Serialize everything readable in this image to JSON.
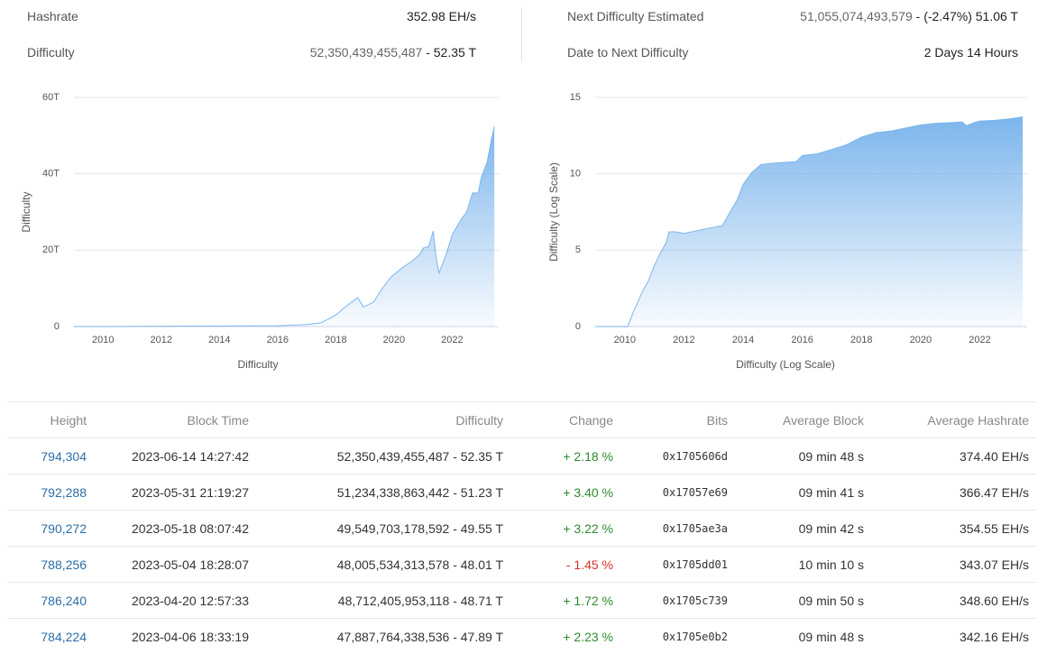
{
  "stats": [
    {
      "label": "Hashrate",
      "value": "352.98 EH/s"
    },
    {
      "label": "Difficulty",
      "value": "52,350,439,455,487",
      "suffix": "- 52.35 T"
    },
    {
      "label": "Next Difficulty Estimated",
      "value": "51,055,074,493,579",
      "suffix": "- (-2.47%) 51.06 T"
    },
    {
      "label": "Date to Next Difficulty",
      "value": "2 Days 14 Hours"
    }
  ],
  "chart_data": [
    {
      "type": "area",
      "y_label": "Difficulty",
      "x_label": "Difficulty",
      "color": "#7cb5ec",
      "grid": true,
      "xlim": [
        2009,
        2023.6
      ],
      "xticks": [
        2010,
        2012,
        2014,
        2016,
        2018,
        2020,
        2022
      ],
      "ylim": [
        0,
        60
      ],
      "yticks": [
        0,
        {
          "value": 20,
          "label": "20T"
        },
        {
          "value": 40,
          "label": "40T"
        },
        {
          "value": 60,
          "label": "60T"
        }
      ],
      "x": [
        2009,
        2016,
        2017,
        2017.5,
        2018,
        2018.3,
        2018.75,
        2018.95,
        2019.3,
        2019.6,
        2019.9,
        2020.3,
        2020.4,
        2020.6,
        2020.9,
        2021.0,
        2021.2,
        2021.35,
        2021.45,
        2021.55,
        2021.8,
        2022.0,
        2022.3,
        2022.5,
        2022.7,
        2022.9,
        2023.0,
        2023.2,
        2023.35,
        2023.45
      ],
      "values": [
        0,
        0.2,
        0.5,
        1.0,
        3,
        5,
        7.6,
        5.1,
        6.4,
        10,
        13,
        15.5,
        16,
        17,
        19,
        20.5,
        21,
        25,
        18,
        14,
        19,
        24,
        28,
        30,
        35,
        35,
        39,
        43,
        49,
        52.35
      ]
    },
    {
      "type": "area",
      "y_label": "Difficulty (Log Scale)",
      "x_label": "Difficulty (Log Scale)",
      "color": "#7cb5ec",
      "grid": true,
      "xlim": [
        2009,
        2023.6
      ],
      "xticks": [
        2010,
        2012,
        2014,
        2016,
        2018,
        2020,
        2022
      ],
      "ylim": [
        0,
        15
      ],
      "yticks": [
        0,
        5,
        10,
        15
      ],
      "x": [
        2009,
        2010.1,
        2010.3,
        2010.6,
        2010.8,
        2011.0,
        2011.2,
        2011.4,
        2011.5,
        2011.7,
        2012,
        2012.5,
        2013,
        2013.3,
        2013.5,
        2013.8,
        2014.0,
        2014.3,
        2014.6,
        2015,
        2015.8,
        2016,
        2016.5,
        2017,
        2017.5,
        2018,
        2018.5,
        2019,
        2019.5,
        2020,
        2020.5,
        2021,
        2021.4,
        2021.55,
        2021.8,
        2022,
        2022.5,
        2023,
        2023.45
      ],
      "values": [
        0,
        0,
        1.0,
        2.3,
        3,
        4,
        4.8,
        5.5,
        6.2,
        6.2,
        6.1,
        6.3,
        6.5,
        6.6,
        7.3,
        8.3,
        9.3,
        10.1,
        10.6,
        10.7,
        10.8,
        11.2,
        11.3,
        11.6,
        11.9,
        12.4,
        12.7,
        12.8,
        13.0,
        13.2,
        13.3,
        13.35,
        13.4,
        13.15,
        13.35,
        13.45,
        13.5,
        13.6,
        13.72
      ]
    }
  ],
  "table": {
    "headers": [
      "Height",
      "Block Time",
      "Difficulty",
      "Change",
      "Bits",
      "Average Block",
      "Average Hashrate"
    ],
    "rows": [
      [
        "794,304",
        "2023-06-14 14:27:42",
        "52,350,439,455,487 - 52.35 T",
        "+ 2.18 %",
        "0x1705606d",
        "09 min 48 s",
        "374.40 EH/s"
      ],
      [
        "792,288",
        "2023-05-31 21:19:27",
        "51,234,338,863,442 - 51.23 T",
        "+ 3.40 %",
        "0x17057e69",
        "09 min 41 s",
        "366.47 EH/s"
      ],
      [
        "790,272",
        "2023-05-18 08:07:42",
        "49,549,703,178,592 - 49.55 T",
        "+ 3.22 %",
        "0x1705ae3a",
        "09 min 42 s",
        "354.55 EH/s"
      ],
      [
        "788,256",
        "2023-05-04 18:28:07",
        "48,005,534,313,578 - 48.01 T",
        "- 1.45 %",
        "0x1705dd01",
        "10 min 10 s",
        "343.07 EH/s"
      ],
      [
        "786,240",
        "2023-04-20 12:57:33",
        "48,712,405,953,118 - 48.71 T",
        "+ 1.72 %",
        "0x1705c739",
        "09 min 50 s",
        "348.60 EH/s"
      ],
      [
        "784,224",
        "2023-04-06 18:33:19",
        "47,887,764,338,536 - 47.89 T",
        "+ 2.23 %",
        "0x1705e0b2",
        "09 min 48 s",
        "342.16 EH/s"
      ]
    ]
  }
}
